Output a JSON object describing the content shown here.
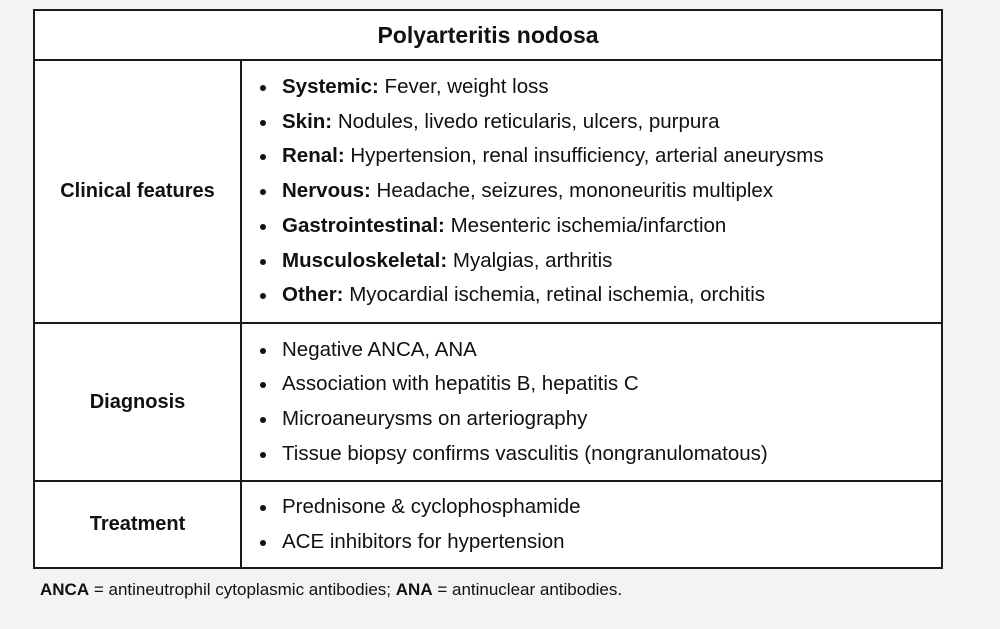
{
  "table": {
    "title": "Polyarteritis nodosa",
    "rows": [
      {
        "label": "Clinical features",
        "items": [
          {
            "term": "Systemic:",
            "text": " Fever, weight loss"
          },
          {
            "term": "Skin:",
            "text": " Nodules, livedo reticularis, ulcers, purpura"
          },
          {
            "term": "Renal:",
            "text": " Hypertension, renal insufficiency, arterial aneurysms"
          },
          {
            "term": "Nervous:",
            "text": " Headache, seizures, mononeuritis multiplex"
          },
          {
            "term": "Gastrointestinal:",
            "text": " Mesenteric ischemia/infarction"
          },
          {
            "term": "Musculoskeletal:",
            "text": " Myalgias, arthritis"
          },
          {
            "term": "Other:",
            "text": " Myocardial ischemia, retinal ischemia, orchitis"
          }
        ]
      },
      {
        "label": "Diagnosis",
        "items": [
          {
            "text": "Negative ANCA, ANA"
          },
          {
            "text": "Association with hepatitis B, hepatitis C"
          },
          {
            "text": "Microaneurysms on arteriography"
          },
          {
            "text": "Tissue biopsy confirms vasculitis (nongranulomatous)"
          }
        ]
      },
      {
        "label": "Treatment",
        "items": [
          {
            "text": "Prednisone & cyclophosphamide"
          },
          {
            "text": "ACE inhibitors for hypertension"
          }
        ]
      }
    ]
  },
  "footnote": {
    "abbr1": "ANCA",
    "def1": " = antineutrophil cytoplasmic antibodies; ",
    "abbr2": "ANA",
    "def2": " = antinuclear antibodies."
  }
}
